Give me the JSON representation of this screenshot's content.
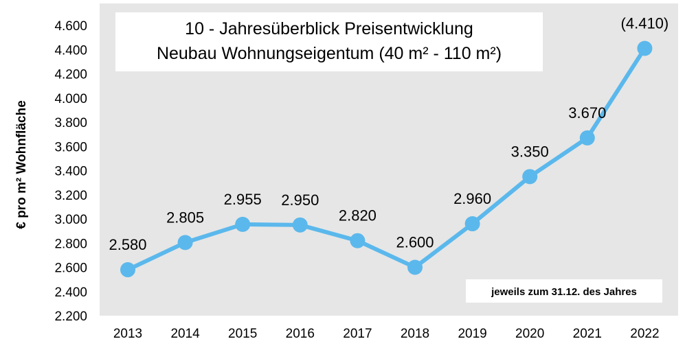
{
  "chart_data": {
    "type": "line",
    "title_line1": "10 - Jahresüberblick Preisentwicklung",
    "title_line2": "Neubau Wohnungseigentum (40 m² - 110 m²)",
    "ylabel": "€ pro m² Wohnfläche",
    "note": "jeweils zum 31.12. des Jahres",
    "categories": [
      "2013",
      "2014",
      "2015",
      "2016",
      "2017",
      "2018",
      "2019",
      "2020",
      "2021",
      "2022"
    ],
    "values": [
      2580,
      2805,
      2955,
      2950,
      2820,
      2600,
      2960,
      3350,
      3670,
      4410
    ],
    "data_labels": [
      "2.580",
      "2.805",
      "2.955",
      "2.950",
      "2.820",
      "2.600",
      "2.960",
      "3.350",
      "3.670",
      "(4.410)"
    ],
    "y_ticks": [
      2200,
      2400,
      2600,
      2800,
      3000,
      3200,
      3400,
      3600,
      3800,
      4000,
      4200,
      4400,
      4600
    ],
    "y_tick_labels": [
      "2.200",
      "2.400",
      "2.600",
      "2.800",
      "3.000",
      "3.200",
      "3.400",
      "3.600",
      "3.800",
      "4.000",
      "4.200",
      "4.400",
      "4.600"
    ],
    "ylim": [
      2200,
      4600
    ],
    "grid": false,
    "colors": {
      "plot_background": "#e6e6e6",
      "line": "#5bb8ec",
      "text": "#000000",
      "box_background": "#ffffff"
    }
  }
}
